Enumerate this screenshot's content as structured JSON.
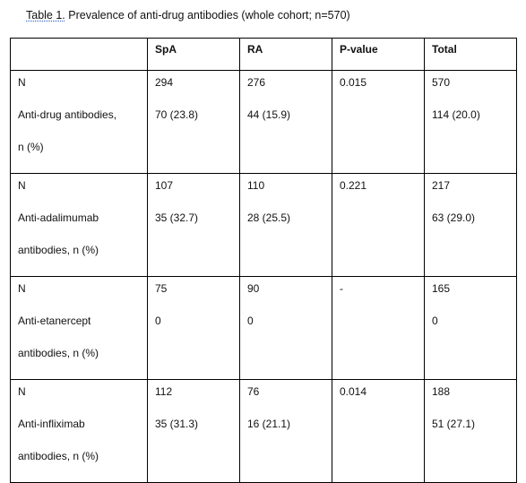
{
  "caption": {
    "label": "Table 1.",
    "text": " Prevalence of anti-drug antibodies (whole cohort; n=570)"
  },
  "table": {
    "headers": [
      "",
      "SpA",
      "RA",
      "P-value",
      "Total"
    ],
    "rows": [
      {
        "row_lines": [
          "N",
          "Anti-drug antibodies,",
          "n (%)"
        ],
        "spa": [
          "294",
          "70 (23.8)"
        ],
        "ra": [
          "276",
          "44 (15.9)"
        ],
        "pvalue": [
          "0.015"
        ],
        "total": [
          "570",
          "114  (20.0)"
        ]
      },
      {
        "row_lines": [
          "N",
          "Anti-adalimumab",
          "antibodies, n (%)"
        ],
        "spa": [
          "107",
          "35 (32.7)"
        ],
        "ra": [
          "110",
          "28 (25.5)"
        ],
        "pvalue": [
          "0.221"
        ],
        "total": [
          "217",
          "63 (29.0)"
        ]
      },
      {
        "row_lines": [
          "N",
          "Anti-etanercept",
          "antibodies, n (%)"
        ],
        "spa": [
          "75",
          "0"
        ],
        "ra": [
          "90",
          "0"
        ],
        "pvalue": [
          "-"
        ],
        "total": [
          "165",
          "0"
        ]
      },
      {
        "row_lines": [
          "N",
          "Anti-infliximab",
          "antibodies, n (%)"
        ],
        "spa": [
          "112",
          "35 (31.3)"
        ],
        "ra": [
          "76",
          "16 (21.1)"
        ],
        "pvalue": [
          "0.014"
        ],
        "total": [
          "188",
          "51 (27.1)"
        ]
      }
    ]
  }
}
